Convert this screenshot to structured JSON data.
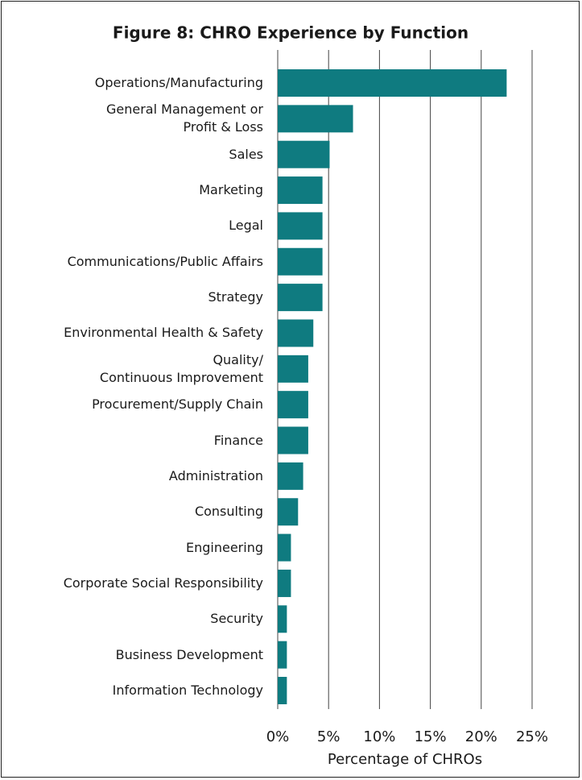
{
  "chart_data": {
    "type": "barh",
    "title": "Figure 8: CHRO Experience by Function",
    "categories": [
      "Operations/Manufacturing",
      "General Management or\nProfit & Loss",
      "Sales",
      "Marketing",
      "Legal",
      "Communications/Public Affairs",
      "Strategy",
      "Environmental Health & Safety",
      "Quality/\nContinuous Improvement",
      "Procurement/Supply Chain",
      "Finance",
      "Administration",
      "Consulting",
      "Engineering",
      "Corporate Social Responsibility",
      "Security",
      "Business Development",
      "Information Technology"
    ],
    "values": [
      22.5,
      7.4,
      5.1,
      4.4,
      4.4,
      4.4,
      4.4,
      3.5,
      3.0,
      3.0,
      3.0,
      2.5,
      2.0,
      1.3,
      1.3,
      0.9,
      0.9,
      0.9
    ],
    "color": "#0f7b80",
    "xlim": [
      0,
      25
    ],
    "xticks": [
      {
        "value": 0,
        "label": "0%"
      },
      {
        "value": 5,
        "label": "5%"
      },
      {
        "value": 10,
        "label": "10%"
      },
      {
        "value": 15,
        "label": "15%"
      },
      {
        "value": 20,
        "label": "20%"
      },
      {
        "value": 25,
        "label": "25%"
      }
    ],
    "xlabel": "Percentage of CHROs",
    "grid": true
  }
}
